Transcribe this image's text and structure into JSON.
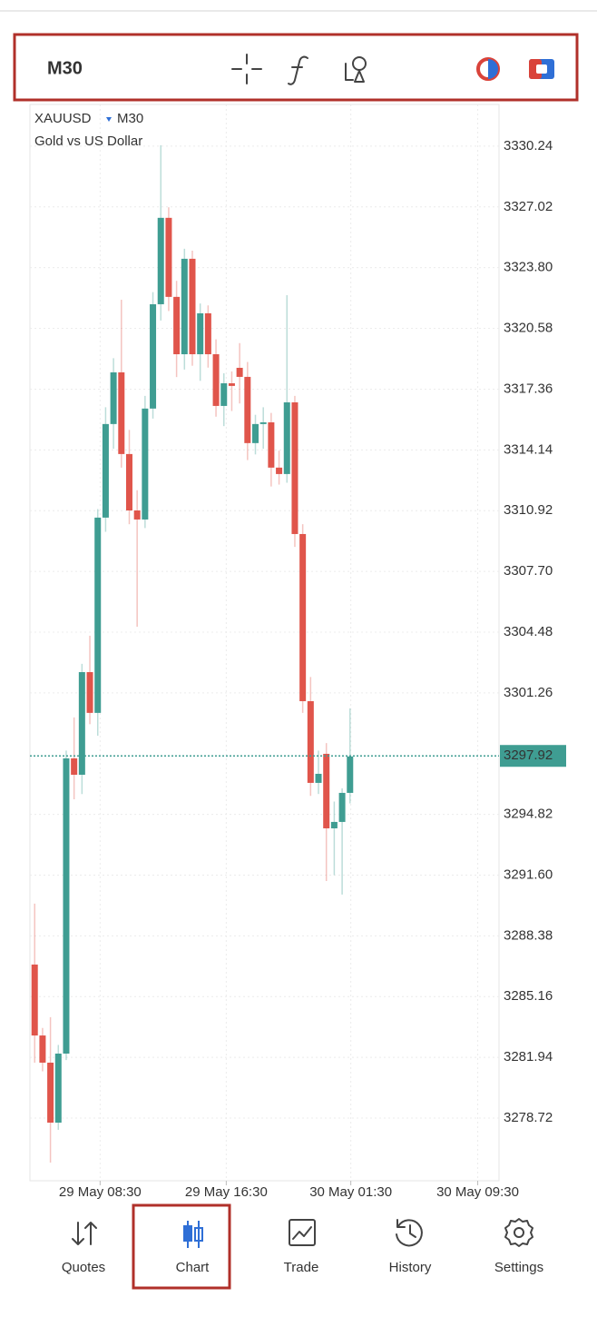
{
  "toolbar": {
    "timeframe": "M30"
  },
  "chart_data": {
    "type": "candlestick",
    "symbol": "XAUUSD",
    "timeframe": "M30",
    "subtitle": "Gold vs US Dollar",
    "up_color": "#3f9d92",
    "down_color": "#e0554b",
    "grid": true,
    "open": [
      3286.86,
      3283.1,
      3281.66,
      3278.48,
      3282.14,
      3297.79,
      3296.92,
      3302.36,
      3300.2,
      3310.55,
      3315.51,
      3318.25,
      3313.92,
      3310.93,
      3310.45,
      3316.33,
      3321.86,
      3326.44,
      3322.25,
      3319.21,
      3324.27,
      3319.21,
      3321.38,
      3319.21,
      3316.47,
      3317.67,
      3318.49,
      3318.01,
      3314.5,
      3315.51,
      3315.6,
      3313.2,
      3312.86,
      3316.66,
      3309.68,
      3300.82,
      3296.49,
      3298.03,
      3294.08,
      3294.42,
      3295.96
    ],
    "high": [
      3290.09,
      3283.5,
      3284.07,
      3282.6,
      3298.2,
      3299.96,
      3302.8,
      3304.29,
      3311.0,
      3316.4,
      3319.0,
      3322.1,
      3315.2,
      3312.0,
      3317.0,
      3322.5,
      3330.29,
      3327.0,
      3323.1,
      3324.8,
      3324.7,
      3321.9,
      3321.8,
      3320.0,
      3318.2,
      3318.3,
      3319.8,
      3318.8,
      3316.0,
      3316.4,
      3316.1,
      3314.1,
      3322.34,
      3317.0,
      3310.2,
      3302.1,
      3298.2,
      3298.6,
      3295.5,
      3296.2,
      3300.44
    ],
    "low": [
      3281.66,
      3281.2,
      3276.36,
      3278.1,
      3281.8,
      3295.62,
      3295.9,
      3299.6,
      3298.99,
      3309.8,
      3314.2,
      3313.2,
      3310.2,
      3304.77,
      3310.0,
      3315.8,
      3321.0,
      3321.5,
      3318.0,
      3318.4,
      3318.6,
      3317.8,
      3318.5,
      3315.9,
      3315.4,
      3316.2,
      3316.6,
      3313.6,
      3313.9,
      3314.2,
      3312.2,
      3312.3,
      3312.4,
      3309.0,
      3300.2,
      3295.8,
      3295.9,
      3291.29,
      3291.6,
      3290.57,
      3295.4
    ],
    "close": [
      3283.1,
      3281.66,
      3278.48,
      3282.14,
      3297.79,
      3296.92,
      3302.36,
      3300.2,
      3310.55,
      3315.51,
      3318.25,
      3313.92,
      3310.93,
      3310.45,
      3316.33,
      3321.86,
      3326.44,
      3322.25,
      3319.21,
      3324.27,
      3319.21,
      3321.38,
      3319.21,
      3316.47,
      3317.67,
      3317.53,
      3318.01,
      3314.5,
      3315.51,
      3315.6,
      3313.2,
      3312.86,
      3316.66,
      3309.68,
      3300.82,
      3296.49,
      3296.97,
      3294.08,
      3294.42,
      3295.96,
      3297.89
    ],
    "ylim": [
      3275.4,
      3332.45
    ],
    "yticks": [
      {
        "value": 3330.24,
        "label": "3330.24"
      },
      {
        "value": 3327.02,
        "label": "3327.02"
      },
      {
        "value": 3323.8,
        "label": "3323.80"
      },
      {
        "value": 3320.58,
        "label": "3320.58"
      },
      {
        "value": 3317.36,
        "label": "3317.36"
      },
      {
        "value": 3314.14,
        "label": "3314.14"
      },
      {
        "value": 3310.92,
        "label": "3310.92"
      },
      {
        "value": 3307.7,
        "label": "3307.70"
      },
      {
        "value": 3304.48,
        "label": "3304.48"
      },
      {
        "value": 3301.26,
        "label": "3301.26"
      },
      {
        "value": 3294.82,
        "label": "3294.82"
      },
      {
        "value": 3291.6,
        "label": "3291.60"
      },
      {
        "value": 3288.38,
        "label": "3288.38"
      },
      {
        "value": 3285.16,
        "label": "3285.16"
      },
      {
        "value": 3281.94,
        "label": "3281.94"
      },
      {
        "value": 3278.72,
        "label": "3278.72"
      }
    ],
    "xlim": [
      -0.6,
      58.9
    ],
    "xticks": [
      {
        "value": 8.3,
        "label": "29 May 08:30"
      },
      {
        "value": 24.3,
        "label": "29 May 16:30"
      },
      {
        "value": 40.1,
        "label": "30 May 01:30"
      },
      {
        "value": 56.2,
        "label": "30 May 09:30"
      }
    ],
    "last_price": 3297.92
  },
  "nav": [
    {
      "label": "Quotes",
      "active": false
    },
    {
      "label": "Chart",
      "active": true
    },
    {
      "label": "Trade",
      "active": false
    },
    {
      "label": "History",
      "active": false
    },
    {
      "label": "Settings",
      "active": false
    }
  ]
}
